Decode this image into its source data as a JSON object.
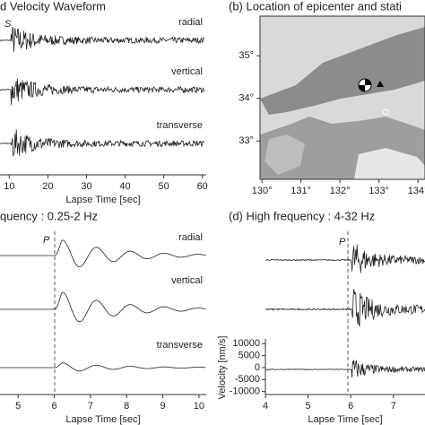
{
  "panels": [
    {
      "title": "d Velocity Waveform",
      "phase": "S",
      "traces": [
        "radial",
        "vertical",
        "transverse"
      ],
      "xlabel": "Lapse Time [sec]",
      "xlim": [
        7.6,
        61
      ],
      "xticks": [
        10,
        20,
        30,
        40,
        50,
        60
      ]
    },
    {
      "title": "(b) Location of epicenter and stati",
      "xlim": [
        129.95,
        134.18
      ],
      "ylim": [
        32.1,
        35.93
      ],
      "xticks": [
        {
          "value": 130,
          "label": "130°"
        },
        {
          "value": 131,
          "label": "131°"
        },
        {
          "value": 132,
          "label": "132°"
        },
        {
          "value": 133,
          "label": "133°"
        },
        {
          "value": 134,
          "label": "134°"
        }
      ],
      "yticks": [
        {
          "value": 35,
          "label": "35°"
        },
        {
          "value": 34,
          "label": "34°"
        },
        {
          "value": 33,
          "label": "33°"
        }
      ]
    },
    {
      "title": "quency : 0.25-2 Hz",
      "phase": "P",
      "traces": [
        "radial",
        "vertical",
        "transverse"
      ],
      "xlabel": "Lapse Time [sec]",
      "xlim": [
        4.5,
        10.2
      ],
      "xticks": [
        5,
        6,
        7,
        8,
        9,
        10
      ]
    },
    {
      "title": "(d) High frequency : 4-32 Hz",
      "phase": "P",
      "xlabel": "Lapse Time [sec]",
      "xlim": [
        4,
        7.74
      ],
      "xticks": [
        4,
        5,
        6,
        7
      ],
      "ylabel": "Velocity [nm/s]",
      "ylim": [
        -12000,
        12000
      ],
      "yticks": [
        10000,
        5000,
        0,
        -5000,
        -10000
      ]
    }
  ]
}
